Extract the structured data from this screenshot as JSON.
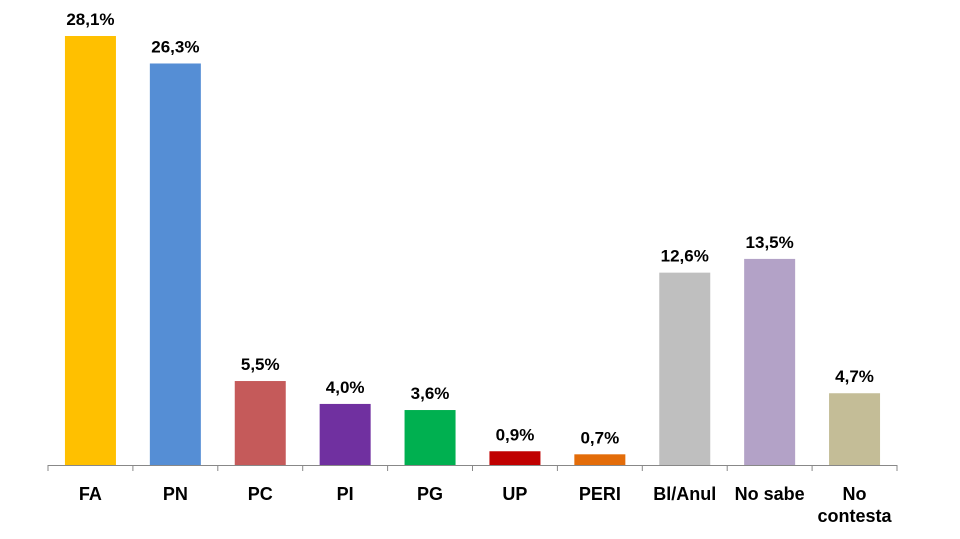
{
  "chart_data": {
    "type": "bar",
    "categories": [
      "FA",
      "PN",
      "PC",
      "PI",
      "PG",
      "UP",
      "PERI",
      "Bl/Anul",
      "No sabe",
      "No contesta"
    ],
    "values": [
      28.1,
      26.3,
      5.5,
      4.0,
      3.6,
      0.9,
      0.7,
      12.6,
      13.5,
      4.7
    ],
    "value_labels": [
      "28,1%",
      "26,3%",
      "5,5%",
      "4,0%",
      "3,6%",
      "0,9%",
      "0,7%",
      "12,6%",
      "13,5%",
      "4,7%"
    ],
    "colors": [
      "#FFC000",
      "#558ED5",
      "#C55A5A",
      "#7030A0",
      "#00B050",
      "#C00000",
      "#E36C09",
      "#BFBFBF",
      "#B3A2C7",
      "#C4BD97"
    ],
    "ylim": [
      0,
      30
    ]
  }
}
